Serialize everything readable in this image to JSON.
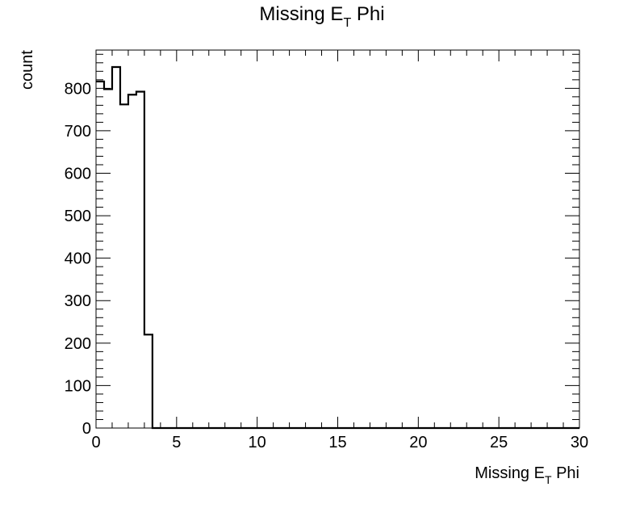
{
  "chart_data": {
    "type": "histogram",
    "title": {
      "main": "Missing E",
      "sub": "T",
      "rest": " Phi"
    },
    "xlabel": {
      "main": "Missing E",
      "sub": "T",
      "rest": " Phi"
    },
    "ylabel": "count",
    "xlim": [
      0,
      30
    ],
    "ylim": [
      0,
      890
    ],
    "bin_width": 0.5,
    "bin_edges_start": 0,
    "counts": [
      816,
      798,
      850,
      762,
      785,
      792,
      220
    ],
    "x_major_ticks": [
      0,
      5,
      10,
      15,
      20,
      25,
      30
    ],
    "x_tick_labels": [
      "0",
      "5",
      "10",
      "15",
      "20",
      "25",
      "30"
    ],
    "y_major_ticks": [
      0,
      100,
      200,
      300,
      400,
      500,
      600,
      700,
      800
    ],
    "y_tick_labels": [
      "0",
      "100",
      "200",
      "300",
      "400",
      "500",
      "600",
      "700",
      "800"
    ],
    "grid": false,
    "line_color": "#000000"
  }
}
